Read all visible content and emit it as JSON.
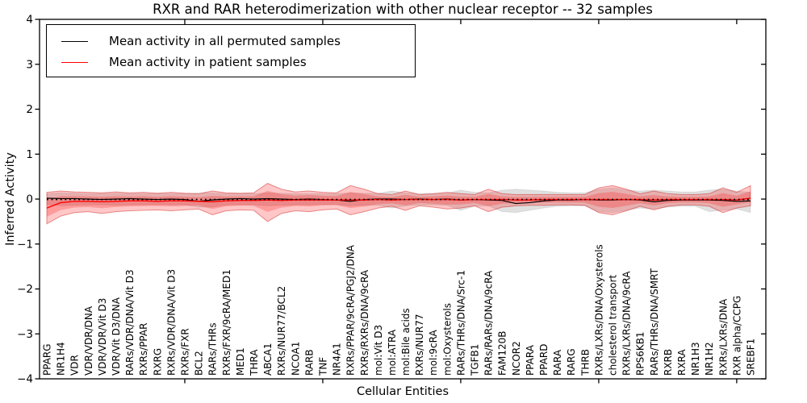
{
  "title": "RXR and RAR heterodimerization with other nuclear receptor -- 32 samples",
  "xlabel": "Cellular Entities",
  "ylabel": "Inferred Activity",
  "legend": {
    "items": [
      {
        "label": "Mean activity in all permuted samples",
        "color": "#000000"
      },
      {
        "label": "Mean activity in patient samples",
        "color": "#ff0000"
      }
    ]
  },
  "colors": {
    "permuted_line": "#000000",
    "patient_line": "#ff0000",
    "red_band": "rgba(255,0,0,0.22)",
    "red_band_edge": "rgba(210,40,40,0.50)",
    "gray_band": "rgba(0,0,0,0.12)",
    "axis": "#000000"
  },
  "chart_data": {
    "type": "line",
    "title": "RXR and RAR heterodimerization with other nuclear receptor -- 32 samples",
    "xlabel": "Cellular Entities",
    "ylabel": "Inferred Activity",
    "ylim": [
      -4,
      4
    ],
    "grid": false,
    "legend_position": "upper left",
    "yticks": {
      "values": [
        -4,
        -3,
        -2,
        -1,
        0,
        1,
        2,
        3,
        4
      ],
      "labels": [
        "−4",
        "−3",
        "−2",
        "−1",
        "0",
        "1",
        "2",
        "3",
        "4"
      ]
    },
    "x_major_tick_indices": [
      10,
      20,
      30,
      40,
      50
    ],
    "categories": [
      "PPARG",
      "NR1H4",
      "VDR",
      "VDR/VDR/DNA",
      "VDR/VDR/Vit D3",
      "VDR/Vit D3/DNA",
      "RARs/VDR/DNA/Vit D3",
      "RXRs/PPAR",
      "RXRG",
      "RXRs/VDR/DNA/Vit D3",
      "RXRs/FXR",
      "BCL2",
      "RARs/THRs",
      "RXRs/FXR/9cRA/MED1",
      "MED1",
      "THRA",
      "ABCA1",
      "RXRs/NUR77/BCL2",
      "NCOA1",
      "RARB",
      "TNF",
      "NR4A1",
      "RXRs/PPAR/9cRA/PGJ2/DNA",
      "RXRs/RXRs/DNA/9cRA",
      "mol:Vit D3",
      "mol:ATRA",
      "mol:Bile acids",
      "RXRs/NUR77",
      "mol:9cRA",
      "mol:Oxysterols",
      "RARs/THRs/DNA/Src-1",
      "TGFB1",
      "RARs/RARs/DNA/9cRA",
      "FAM120B",
      "NCOR2",
      "PPARA",
      "PPARD",
      "RARA",
      "RARG",
      "THRB",
      "RXRs/LXRs/DNA/Oxysterols",
      "cholesterol transport",
      "RXRs/LXRs/DNA/9cRA",
      "RPS6KB1",
      "RARs/THRs/DNA/SMRT",
      "RXRB",
      "RXRA",
      "NR1H3",
      "NR1H2",
      "RXRs/LXRs/DNA",
      "RXR alpha/CCPG",
      "SREBF1"
    ],
    "series": [
      {
        "name": "Mean activity in all permuted samples",
        "values": [
          0.02,
          0.01,
          0.01,
          0,
          -0.01,
          0,
          0.01,
          0,
          -0.01,
          0,
          -0.01,
          -0.05,
          -0.02,
          0,
          0.01,
          0,
          0.01,
          0,
          -0.01,
          0,
          -0.01,
          -0.02,
          -0.05,
          -0.01,
          0,
          0,
          -0.01,
          0,
          -0.01,
          0,
          -0.02,
          -0.01,
          -0.02,
          -0.03,
          -0.1,
          -0.08,
          -0.04,
          -0.02,
          -0.02,
          -0.01,
          -0.02,
          -0.02,
          -0.01,
          -0.02,
          -0.06,
          -0.03,
          -0.02,
          -0.02,
          -0.02,
          -0.03,
          -0.05,
          -0.04
        ]
      },
      {
        "name": "Mean activity in patient samples",
        "values": [
          -0.2,
          -0.08,
          -0.05,
          -0.05,
          -0.06,
          -0.05,
          -0.04,
          -0.04,
          -0.05,
          -0.04,
          -0.04,
          -0.05,
          -0.06,
          -0.04,
          -0.03,
          -0.03,
          -0.02,
          -0.03,
          -0.02,
          -0.02,
          -0.02,
          -0.02,
          -0.02,
          -0.02,
          -0.01,
          -0.02,
          -0.01,
          -0.01,
          -0.01,
          -0.01,
          -0.02,
          -0.01,
          -0.01,
          -0.01,
          -0.02,
          -0.02,
          -0.01,
          -0.01,
          -0.01,
          -0.01,
          -0.01,
          -0.01,
          -0.01,
          -0.01,
          -0.02,
          -0.01,
          -0.01,
          -0.01,
          -0.01,
          -0.01,
          -0.02,
          0.02
        ]
      }
    ],
    "bands": {
      "patient_upper": [
        0.15,
        0.18,
        0.16,
        0.15,
        0.14,
        0.16,
        0.14,
        0.15,
        0.13,
        0.15,
        0.13,
        0.12,
        0.18,
        0.14,
        0.13,
        0.14,
        0.35,
        0.22,
        0.16,
        0.18,
        0.15,
        0.14,
        0.3,
        0.22,
        0.12,
        0.1,
        0.18,
        0.1,
        0.12,
        0.15,
        0.12,
        0.1,
        0.22,
        0.12,
        0.1,
        0.1,
        0.1,
        0.1,
        0.1,
        0.1,
        0.25,
        0.3,
        0.22,
        0.12,
        0.18,
        0.12,
        0.1,
        0.1,
        0.12,
        0.25,
        0.15,
        0.3
      ],
      "patient_lower": [
        -0.55,
        -0.38,
        -0.3,
        -0.28,
        -0.32,
        -0.28,
        -0.26,
        -0.25,
        -0.24,
        -0.26,
        -0.24,
        -0.22,
        -0.35,
        -0.26,
        -0.24,
        -0.25,
        -0.5,
        -0.32,
        -0.26,
        -0.28,
        -0.24,
        -0.22,
        -0.35,
        -0.28,
        -0.2,
        -0.16,
        -0.25,
        -0.15,
        -0.18,
        -0.22,
        -0.2,
        -0.15,
        -0.28,
        -0.18,
        -0.15,
        -0.14,
        -0.14,
        -0.13,
        -0.13,
        -0.14,
        -0.3,
        -0.35,
        -0.26,
        -0.16,
        -0.24,
        -0.16,
        -0.13,
        -0.13,
        -0.16,
        -0.3,
        -0.2,
        -0.15
      ],
      "permuted_upper": [
        0.12,
        0.14,
        0.13,
        0.12,
        0.12,
        0.13,
        0.12,
        0.12,
        0.12,
        0.12,
        0.12,
        0.13,
        0.14,
        0.12,
        0.12,
        0.12,
        0.14,
        0.13,
        0.12,
        0.12,
        0.12,
        0.12,
        0.14,
        0.13,
        0.13,
        0.18,
        0.14,
        0.12,
        0.12,
        0.13,
        0.2,
        0.15,
        0.14,
        0.2,
        0.22,
        0.2,
        0.18,
        0.15,
        0.14,
        0.14,
        0.22,
        0.25,
        0.2,
        0.18,
        0.2,
        0.18,
        0.16,
        0.16,
        0.2,
        0.22,
        0.18,
        0.15
      ],
      "permuted_lower": [
        -0.12,
        -0.15,
        -0.14,
        -0.13,
        -0.13,
        -0.14,
        -0.13,
        -0.13,
        -0.12,
        -0.13,
        -0.13,
        -0.18,
        -0.18,
        -0.13,
        -0.13,
        -0.13,
        -0.15,
        -0.14,
        -0.13,
        -0.13,
        -0.12,
        -0.13,
        -0.15,
        -0.14,
        -0.14,
        -0.2,
        -0.15,
        -0.13,
        -0.13,
        -0.14,
        -0.25,
        -0.16,
        -0.15,
        -0.28,
        -0.3,
        -0.25,
        -0.2,
        -0.16,
        -0.15,
        -0.15,
        -0.28,
        -0.3,
        -0.25,
        -0.2,
        -0.22,
        -0.18,
        -0.16,
        -0.16,
        -0.28,
        -0.25,
        -0.22,
        -0.3
      ]
    }
  }
}
